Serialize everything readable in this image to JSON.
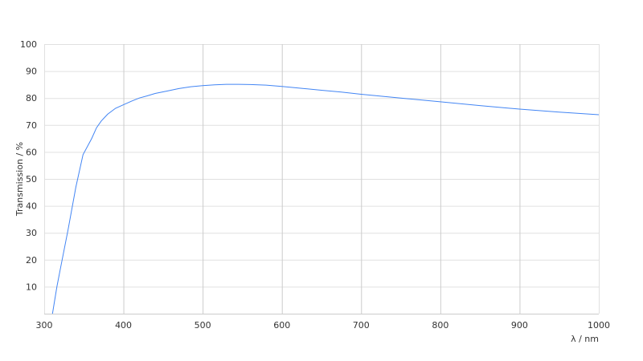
{
  "chart_data": {
    "type": "line",
    "title": "",
    "xlabel": "λ / nm",
    "ylabel": "Transmission / %",
    "xlim": [
      300,
      1000
    ],
    "ylim": [
      0,
      100
    ],
    "xticks": [
      300,
      400,
      500,
      600,
      700,
      800,
      900,
      1000
    ],
    "yticks": [
      10,
      20,
      30,
      40,
      50,
      60,
      70,
      80,
      90,
      100
    ],
    "grid": true,
    "colors": {
      "line": "#4285f4",
      "hgrid": "#e0e0e0",
      "vgrid": "#cccccc"
    },
    "series": [
      {
        "x": [
          310.5,
          316,
          320,
          330,
          340,
          349,
          360,
          366,
          372,
          380,
          390,
          400,
          410,
          420,
          430,
          440,
          455,
          470,
          485,
          500,
          515,
          530,
          545,
          560,
          580,
          600,
          625,
          650,
          675,
          700,
          750,
          800,
          850,
          900,
          950,
          1000
        ],
        "y": [
          0,
          10,
          16,
          31,
          47,
          59,
          65,
          69,
          71.5,
          74,
          76.2,
          77.5,
          78.8,
          80,
          80.8,
          81.7,
          82.6,
          83.5,
          84.2,
          84.6,
          84.9,
          85.1,
          85.1,
          85.0,
          84.8,
          84.3,
          83.6,
          82.9,
          82.2,
          81.4,
          80.0,
          78.6,
          77.2,
          75.9,
          74.8,
          73.8
        ]
      }
    ]
  }
}
